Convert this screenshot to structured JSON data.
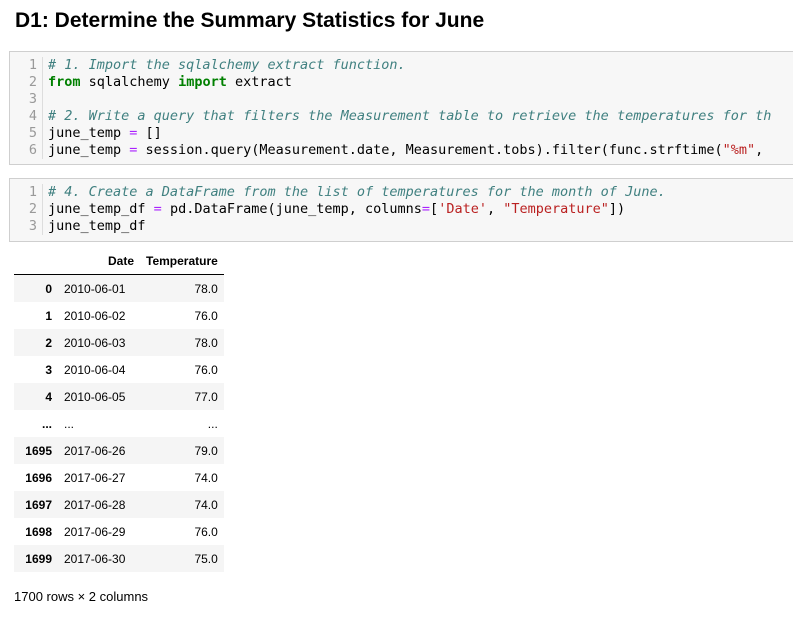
{
  "heading": "D1: Determine the Summary Statistics for June",
  "cell1": {
    "lines": [
      {
        "n": "1",
        "tokens": [
          {
            "t": "# 1. Import the sqlalchemy extract function.",
            "c": "comment"
          }
        ]
      },
      {
        "n": "2",
        "tokens": [
          {
            "t": "from",
            "c": "kw"
          },
          {
            "t": " sqlalchemy ",
            "c": ""
          },
          {
            "t": "import",
            "c": "kw"
          },
          {
            "t": " extract",
            "c": ""
          }
        ]
      },
      {
        "n": "3",
        "tokens": []
      },
      {
        "n": "4",
        "tokens": [
          {
            "t": "# 2. Write a query that filters the Measurement table to retrieve the temperatures for th",
            "c": "comment"
          }
        ]
      },
      {
        "n": "5",
        "tokens": [
          {
            "t": "june_temp ",
            "c": ""
          },
          {
            "t": "=",
            "c": "op"
          },
          {
            "t": " []",
            "c": ""
          }
        ]
      },
      {
        "n": "6",
        "tokens": [
          {
            "t": "june_temp ",
            "c": ""
          },
          {
            "t": "=",
            "c": "op"
          },
          {
            "t": " session.query(Measurement.date, Measurement.tobs).filter(func.strftime(",
            "c": ""
          },
          {
            "t": "\"%m\"",
            "c": "str"
          },
          {
            "t": ",",
            "c": ""
          }
        ]
      }
    ]
  },
  "cell2": {
    "lines": [
      {
        "n": "1",
        "tokens": [
          {
            "t": "# 4. Create a DataFrame from the list of temperatures for the month of June.",
            "c": "comment"
          }
        ]
      },
      {
        "n": "2",
        "tokens": [
          {
            "t": "june_temp_df ",
            "c": ""
          },
          {
            "t": "=",
            "c": "op"
          },
          {
            "t": " pd.DataFrame(june_temp, columns",
            "c": ""
          },
          {
            "t": "=",
            "c": "op"
          },
          {
            "t": "[",
            "c": ""
          },
          {
            "t": "'Date'",
            "c": "str"
          },
          {
            "t": ", ",
            "c": ""
          },
          {
            "t": "\"Temperature\"",
            "c": "str"
          },
          {
            "t": "])",
            "c": ""
          }
        ]
      },
      {
        "n": "3",
        "tokens": [
          {
            "t": "june_temp_df",
            "c": ""
          }
        ]
      }
    ]
  },
  "dataframe": {
    "columns": [
      "Date",
      "Temperature"
    ],
    "rows": [
      {
        "index": "0",
        "date": "2010-06-01",
        "temp": "78.0"
      },
      {
        "index": "1",
        "date": "2010-06-02",
        "temp": "76.0"
      },
      {
        "index": "2",
        "date": "2010-06-03",
        "temp": "78.0"
      },
      {
        "index": "3",
        "date": "2010-06-04",
        "temp": "76.0"
      },
      {
        "index": "4",
        "date": "2010-06-05",
        "temp": "77.0"
      },
      {
        "index": "...",
        "date": "...",
        "temp": "..."
      },
      {
        "index": "1695",
        "date": "2017-06-26",
        "temp": "79.0"
      },
      {
        "index": "1696",
        "date": "2017-06-27",
        "temp": "74.0"
      },
      {
        "index": "1697",
        "date": "2017-06-28",
        "temp": "74.0"
      },
      {
        "index": "1698",
        "date": "2017-06-29",
        "temp": "76.0"
      },
      {
        "index": "1699",
        "date": "2017-06-30",
        "temp": "75.0"
      }
    ],
    "shape": "1700 rows × 2 columns"
  }
}
